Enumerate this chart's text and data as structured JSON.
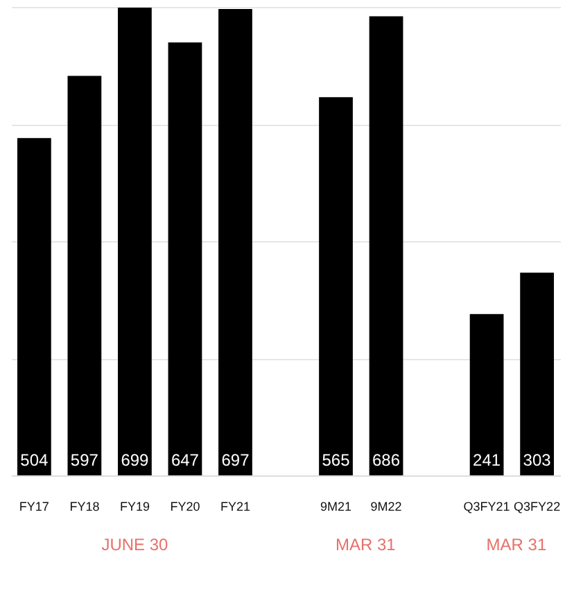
{
  "chart_data": {
    "type": "bar",
    "categories": [
      "FY17",
      "FY18",
      "FY19",
      "FY20",
      "FY21",
      null,
      "9M21",
      "9M22",
      null,
      "Q3FY21",
      "Q3FY22"
    ],
    "values": [
      504,
      597,
      699,
      647,
      697,
      null,
      565,
      686,
      null,
      241,
      303
    ],
    "color": "#000000",
    "data_labels": true,
    "ylim": [
      0,
      700
    ],
    "yticks": [
      {
        "value": 0,
        "label": null
      },
      {
        "value": 175,
        "label": null
      },
      {
        "value": 350,
        "label": null
      },
      {
        "value": 525,
        "label": null
      },
      {
        "value": 700,
        "label": null
      }
    ],
    "grid": "y",
    "tick_labels": "x",
    "annotations": [
      "JUNE 30",
      "MAR 31",
      "MAR 31"
    ]
  }
}
